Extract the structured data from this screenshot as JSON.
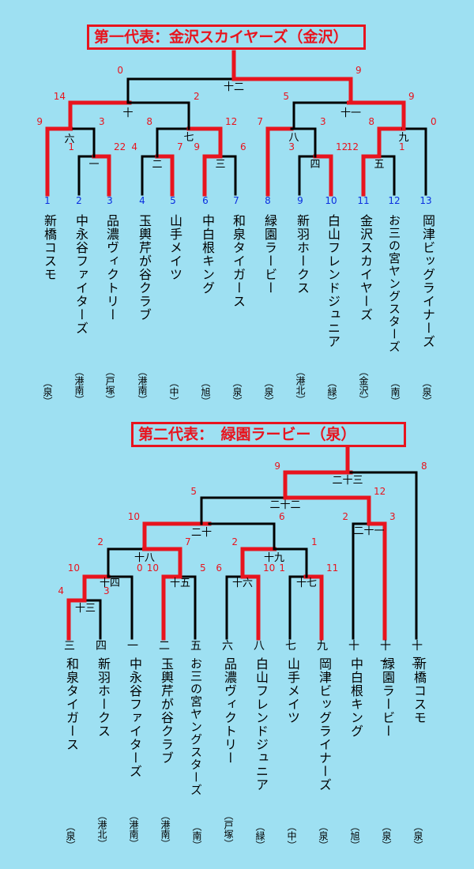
{
  "colors": {
    "background": "#9ee0f2",
    "winner": "#e8141e",
    "line": "#000000",
    "seed": "#0a2ee0"
  },
  "bracket1": {
    "title": "第一代表：金沢スカイヤーズ（金沢）",
    "teams": [
      {
        "seed": "1",
        "name": "新橋コスモ",
        "district": "（泉）"
      },
      {
        "seed": "2",
        "name": "中永谷ファイターズ",
        "district": "（港南）"
      },
      {
        "seed": "3",
        "name": "品濃ヴィクトリー",
        "district": "（戸塚）"
      },
      {
        "seed": "4",
        "name": "玉輿芹が谷クラブ",
        "district": "（港南）"
      },
      {
        "seed": "5",
        "name": "山手メイツ",
        "district": "（中）"
      },
      {
        "seed": "6",
        "name": "中白根キング",
        "district": "（旭）"
      },
      {
        "seed": "7",
        "name": "和泉タイガース",
        "district": "（泉）"
      },
      {
        "seed": "8",
        "name": "緑園ラービー",
        "district": "（泉）"
      },
      {
        "seed": "9",
        "name": "新羽ホークス",
        "district": "（港北）"
      },
      {
        "seed": "10",
        "name": "白山フレンドジュニア",
        "district": "（緑）"
      },
      {
        "seed": "11",
        "name": "金沢スカイヤーズ",
        "district": "（金沢）"
      },
      {
        "seed": "12",
        "name": "お三の宮ヤングスターズ",
        "district": "（南）"
      },
      {
        "seed": "13",
        "name": "岡津ビッグライナーズ",
        "district": "（泉）"
      }
    ],
    "games": [
      {
        "no": "一",
        "scores": [
          "1",
          "22"
        ]
      },
      {
        "no": "二",
        "scores": [
          "4",
          "7"
        ]
      },
      {
        "no": "三",
        "scores": [
          "9",
          "6"
        ]
      },
      {
        "no": "四",
        "scores": [
          "3",
          "12"
        ]
      },
      {
        "no": "五",
        "scores": [
          "12",
          "1"
        ]
      },
      {
        "no": "六",
        "scores": [
          "9",
          "3"
        ]
      },
      {
        "no": "七",
        "scores": [
          "8",
          "12"
        ]
      },
      {
        "no": "八",
        "scores": [
          "7",
          "3"
        ]
      },
      {
        "no": "九",
        "scores": [
          "8",
          "0"
        ]
      },
      {
        "no": "十",
        "scores": [
          "14",
          "2"
        ]
      },
      {
        "no": "十一",
        "scores": [
          "5",
          "9"
        ]
      },
      {
        "no": "十二",
        "scores": [
          "0",
          "9"
        ]
      }
    ]
  },
  "bracket2": {
    "title": "第二代表：　緑園ラービー（泉）",
    "teams": [
      {
        "pos": "三",
        "name": "和泉タイガース",
        "district": "（泉）"
      },
      {
        "pos": "四",
        "name": "新羽ホークス",
        "district": "（港北）"
      },
      {
        "pos": "一",
        "name": "中永谷ファイターズ",
        "district": "（港南）"
      },
      {
        "pos": "二",
        "name": "玉輿芹が谷クラブ",
        "district": "（港南）"
      },
      {
        "pos": "五",
        "name": "お三の宮ヤングスターズ",
        "district": "（南）"
      },
      {
        "pos": "六",
        "name": "品濃ヴィクトリー",
        "district": "（戸塚）"
      },
      {
        "pos": "八",
        "name": "白山フレンドジュニア",
        "district": "（緑）"
      },
      {
        "pos": "七",
        "name": "山手メイツ",
        "district": "（中）"
      },
      {
        "pos": "九",
        "name": "岡津ビッグライナーズ",
        "district": "（泉）"
      },
      {
        "pos": "十",
        "name": "中白根キング",
        "district": "（旭）"
      },
      {
        "pos": "十一",
        "name": "緑園ラービー",
        "district": "（泉）"
      },
      {
        "pos": "十二",
        "name": "新橋コスモ",
        "district": "（泉）"
      }
    ],
    "games": [
      {
        "no": "十三",
        "scores": [
          "4",
          "3"
        ]
      },
      {
        "no": "十四",
        "scores": [
          "10",
          "0"
        ]
      },
      {
        "no": "十五",
        "scores": [
          "10",
          "5"
        ]
      },
      {
        "no": "十六",
        "scores": [
          "6",
          "10"
        ]
      },
      {
        "no": "十七",
        "scores": [
          "1",
          "11"
        ]
      },
      {
        "no": "十八",
        "scores": [
          "2",
          "7"
        ]
      },
      {
        "no": "十九",
        "scores": [
          "2",
          "1"
        ]
      },
      {
        "no": "二十",
        "scores": [
          "10",
          "6"
        ]
      },
      {
        "no": "二十一",
        "scores": [
          "2",
          "3"
        ]
      },
      {
        "no": "二十二",
        "scores": [
          "5",
          "12"
        ]
      },
      {
        "no": "二十三",
        "scores": [
          "9",
          "8"
        ]
      }
    ]
  }
}
